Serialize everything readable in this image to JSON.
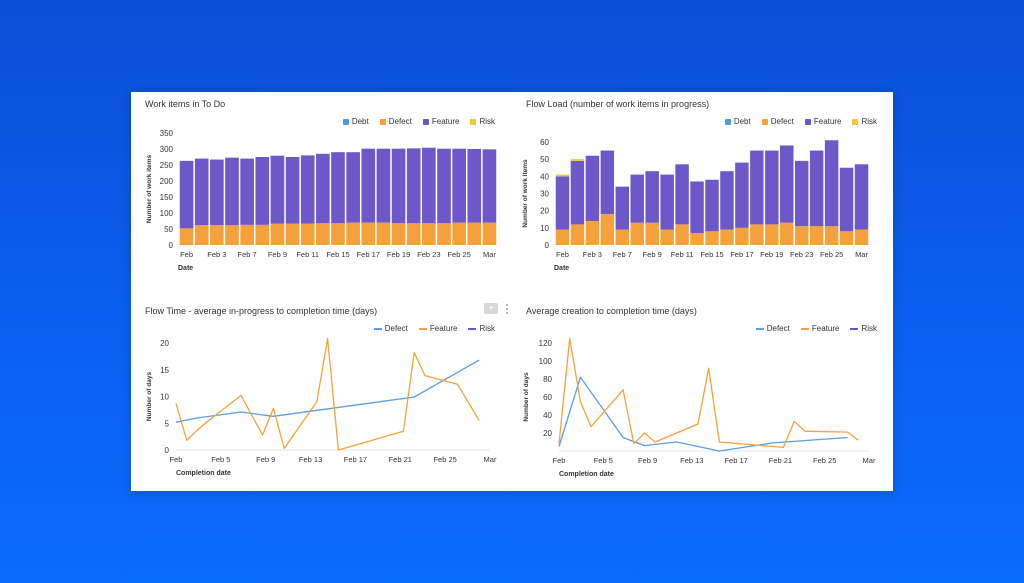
{
  "colors": {
    "debt": "#4e9be8",
    "defect": "#f5a23c",
    "feature": "#6c58c9",
    "risk": "#f2c53a",
    "line_defect": "#5b9de8",
    "line_feature": "#f5a23c",
    "line_risk": "#6c58c9"
  },
  "icons": {
    "comment": "comment-icon",
    "more": "kebab-menu-icon"
  },
  "chart_data": [
    {
      "type": "bar",
      "stacked": true,
      "title": "Work items in To Do",
      "xlabel": "Date",
      "ylabel": "Number of work items",
      "ylim": [
        0,
        350
      ],
      "yticks": [
        0,
        50,
        100,
        150,
        200,
        250,
        300,
        350
      ],
      "xtick_labels": [
        "Feb",
        "Feb 3",
        "Feb 7",
        "Feb 9",
        "Feb 11",
        "Feb 15",
        "Feb 17",
        "Feb 19",
        "Feb 23",
        "Feb 25",
        "Mar"
      ],
      "legend": [
        "Debt",
        "Defect",
        "Feature",
        "Risk"
      ],
      "legend_position": "top-right",
      "series": [
        {
          "name": "Debt",
          "values": [
            0,
            0,
            0,
            0,
            0,
            0,
            0,
            0,
            0,
            0,
            0,
            0,
            0,
            0,
            0,
            0,
            0,
            0,
            0,
            0,
            0
          ]
        },
        {
          "name": "Defect",
          "values": [
            52,
            62,
            62,
            62,
            63,
            63,
            67,
            67,
            67,
            68,
            68,
            70,
            70,
            70,
            68,
            68,
            68,
            68,
            70,
            70,
            70
          ]
        },
        {
          "name": "Feature",
          "values": [
            211,
            208,
            205,
            211,
            207,
            212,
            212,
            208,
            213,
            217,
            222,
            220,
            231,
            231,
            233,
            234,
            236,
            233,
            231,
            230,
            229
          ]
        },
        {
          "name": "Risk",
          "values": [
            0,
            0,
            0,
            0,
            0,
            0,
            0,
            0,
            0,
            0,
            0,
            0,
            0,
            0,
            0,
            0,
            0,
            0,
            0,
            0,
            0
          ]
        }
      ]
    },
    {
      "type": "bar",
      "stacked": true,
      "title": "Flow Load (number of work items in progress)",
      "xlabel": "Date",
      "ylabel": "Number of work items",
      "ylim": [
        0,
        60
      ],
      "yticks": [
        0,
        10,
        20,
        30,
        40,
        50,
        60
      ],
      "xtick_labels": [
        "Feb",
        "Feb 3",
        "Feb 7",
        "Feb 9",
        "Feb 11",
        "Feb 15",
        "Feb 17",
        "Feb 19",
        "Feb 23",
        "Feb 25",
        "Mar"
      ],
      "legend": [
        "Debt",
        "Defect",
        "Feature",
        "Risk"
      ],
      "legend_position": "top-right",
      "series": [
        {
          "name": "Debt",
          "values": [
            0,
            0,
            0,
            0,
            0,
            0,
            0,
            0,
            0,
            0,
            0,
            0,
            0,
            0,
            0,
            0,
            0,
            0,
            0,
            0,
            0
          ]
        },
        {
          "name": "Defect",
          "values": [
            9,
            12,
            14,
            18,
            9,
            13,
            13,
            9,
            12,
            7,
            8,
            9,
            10,
            12,
            12,
            13,
            11,
            11,
            11,
            8,
            9
          ]
        },
        {
          "name": "Feature",
          "values": [
            31,
            37,
            38,
            37,
            25,
            28,
            30,
            32,
            35,
            30,
            30,
            34,
            38,
            43,
            43,
            45,
            38,
            44,
            50,
            37,
            38
          ]
        },
        {
          "name": "Risk",
          "values": [
            1,
            1,
            0,
            0,
            0,
            0,
            0,
            0,
            0,
            0,
            0,
            0,
            0,
            0,
            0,
            0,
            0,
            0,
            0,
            0,
            0
          ]
        }
      ]
    },
    {
      "type": "line",
      "title": "Flow Time - average in-progress to completion time (days)",
      "xlabel": "Completion date",
      "ylabel": "Number of days",
      "ylim": [
        0,
        20
      ],
      "yticks": [
        0,
        5,
        10,
        15,
        20
      ],
      "xlim": [
        0,
        29
      ],
      "xtick_labels": [
        "Feb",
        "Feb 5",
        "Feb 9",
        "Feb 13",
        "Feb 17",
        "Feb 21",
        "Feb 25",
        "Mar"
      ],
      "legend": [
        "Defect",
        "Feature",
        "Risk"
      ],
      "legend_position": "top-right",
      "series": [
        {
          "name": "Defect",
          "x": [
            0,
            2,
            6,
            9,
            22,
            28
          ],
          "y": [
            5.2,
            6,
            7.1,
            6.3,
            9.9,
            16.8
          ]
        },
        {
          "name": "Feature",
          "x": [
            0,
            1,
            2,
            3,
            6,
            8,
            9,
            10,
            13,
            14,
            15,
            21,
            22,
            23,
            26,
            28
          ],
          "y": [
            8.7,
            1.8,
            3.8,
            5.5,
            10.2,
            2.8,
            7.8,
            0.3,
            9,
            20.8,
            0,
            3.5,
            18.2,
            13.9,
            12.3,
            5.5
          ]
        },
        {
          "name": "Risk",
          "x": [],
          "y": []
        }
      ]
    },
    {
      "type": "line",
      "title": "Average creation to completion time (days)",
      "xlabel": "Completion date",
      "ylabel": "Number of days",
      "ylim": [
        0,
        120
      ],
      "yticks": [
        20,
        40,
        60,
        80,
        100,
        120
      ],
      "xlim": [
        0,
        29
      ],
      "xtick_labels": [
        "Feb",
        "Feb 5",
        "Feb 9",
        "Feb 13",
        "Feb 17",
        "Feb 21",
        "Feb 25",
        "Mar"
      ],
      "legend": [
        "Defect",
        "Feature",
        "Risk"
      ],
      "legend_position": "top-right",
      "series": [
        {
          "name": "Defect",
          "x": [
            0,
            2,
            6,
            8,
            11,
            15,
            20,
            27
          ],
          "y": [
            5,
            82,
            15,
            6,
            10,
            0,
            9,
            15
          ]
        },
        {
          "name": "Feature",
          "x": [
            0,
            1,
            2,
            3,
            6,
            7,
            8,
            9,
            13,
            14,
            15,
            21,
            22,
            23,
            27,
            28
          ],
          "y": [
            8,
            125,
            55,
            27,
            68,
            8,
            20,
            10,
            30,
            92,
            10,
            4,
            33,
            22,
            21,
            12
          ]
        },
        {
          "name": "Risk",
          "x": [],
          "y": []
        }
      ]
    }
  ]
}
